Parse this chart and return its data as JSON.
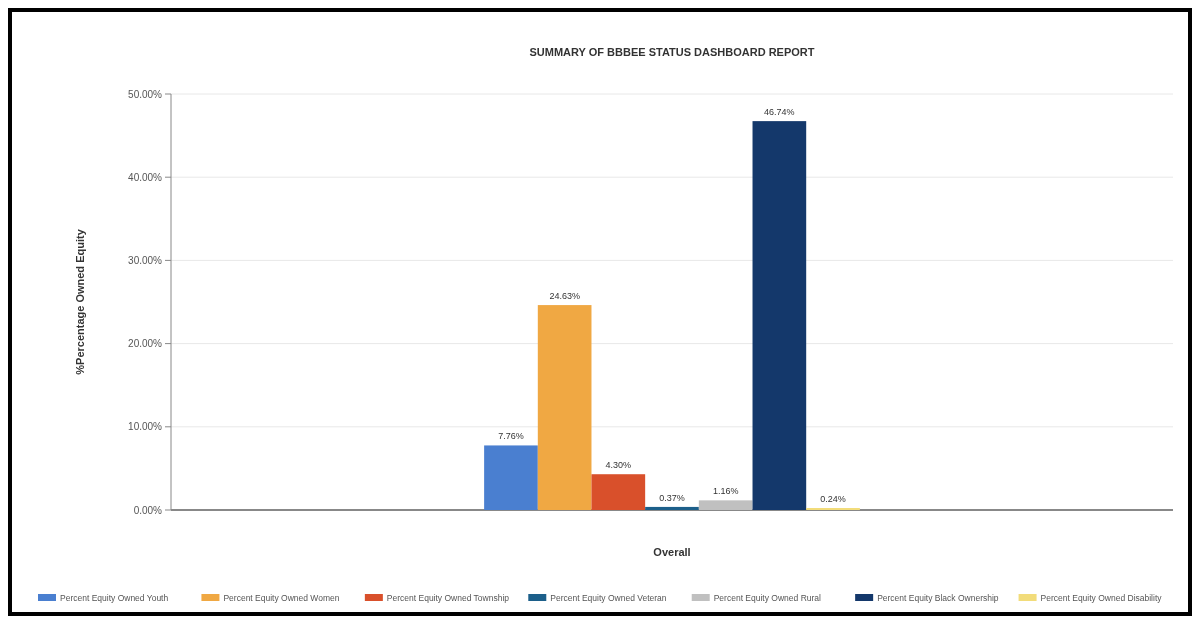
{
  "chart_data": {
    "type": "bar",
    "title": "SUMMARY OF BBBEE STATUS DASHBOARD REPORT",
    "xlabel": "Overall",
    "ylabel": "%Percentage Owned Equity",
    "categories": [
      null
    ],
    "series": [
      {
        "name": "Percent Equity Owned Youth",
        "color": "#4a7fd0",
        "values": [
          7.76
        ],
        "value_labels": [
          "7.76%"
        ]
      },
      {
        "name": "Percent Equity Owned Women",
        "color": "#f0a843",
        "values": [
          24.63
        ],
        "value_labels": [
          "24.63%"
        ]
      },
      {
        "name": "Percent Equity Owned Township",
        "color": "#d9502b",
        "values": [
          4.3
        ],
        "value_labels": [
          "4.30%"
        ]
      },
      {
        "name": "Percent Equity Owned Veteran",
        "color": "#1c5f8a",
        "values": [
          0.37
        ],
        "value_labels": [
          "0.37%"
        ]
      },
      {
        "name": "Percent Equity Owned Rural",
        "color": "#c0c0c0",
        "values": [
          1.16
        ],
        "value_labels": [
          "1.16%"
        ]
      },
      {
        "name": "Percent Equity Black Ownership",
        "color": "#14386b",
        "values": [
          46.74
        ],
        "value_labels": [
          "46.74%"
        ]
      },
      {
        "name": "Percent Equity Owned Disability",
        "color": "#f2dc7a",
        "values": [
          0.24
        ],
        "value_labels": [
          "0.24%"
        ]
      }
    ],
    "ylim": [
      0,
      50
    ],
    "yticks": [
      {
        "value": 0,
        "label": "0.00%"
      },
      {
        "value": 10,
        "label": "10.00%"
      },
      {
        "value": 20,
        "label": "20.00%"
      },
      {
        "value": 30,
        "label": "30.00%"
      },
      {
        "value": 40,
        "label": "40.00%"
      },
      {
        "value": 50,
        "label": "50.00%"
      }
    ],
    "grid": "y",
    "legend": "bottom"
  }
}
